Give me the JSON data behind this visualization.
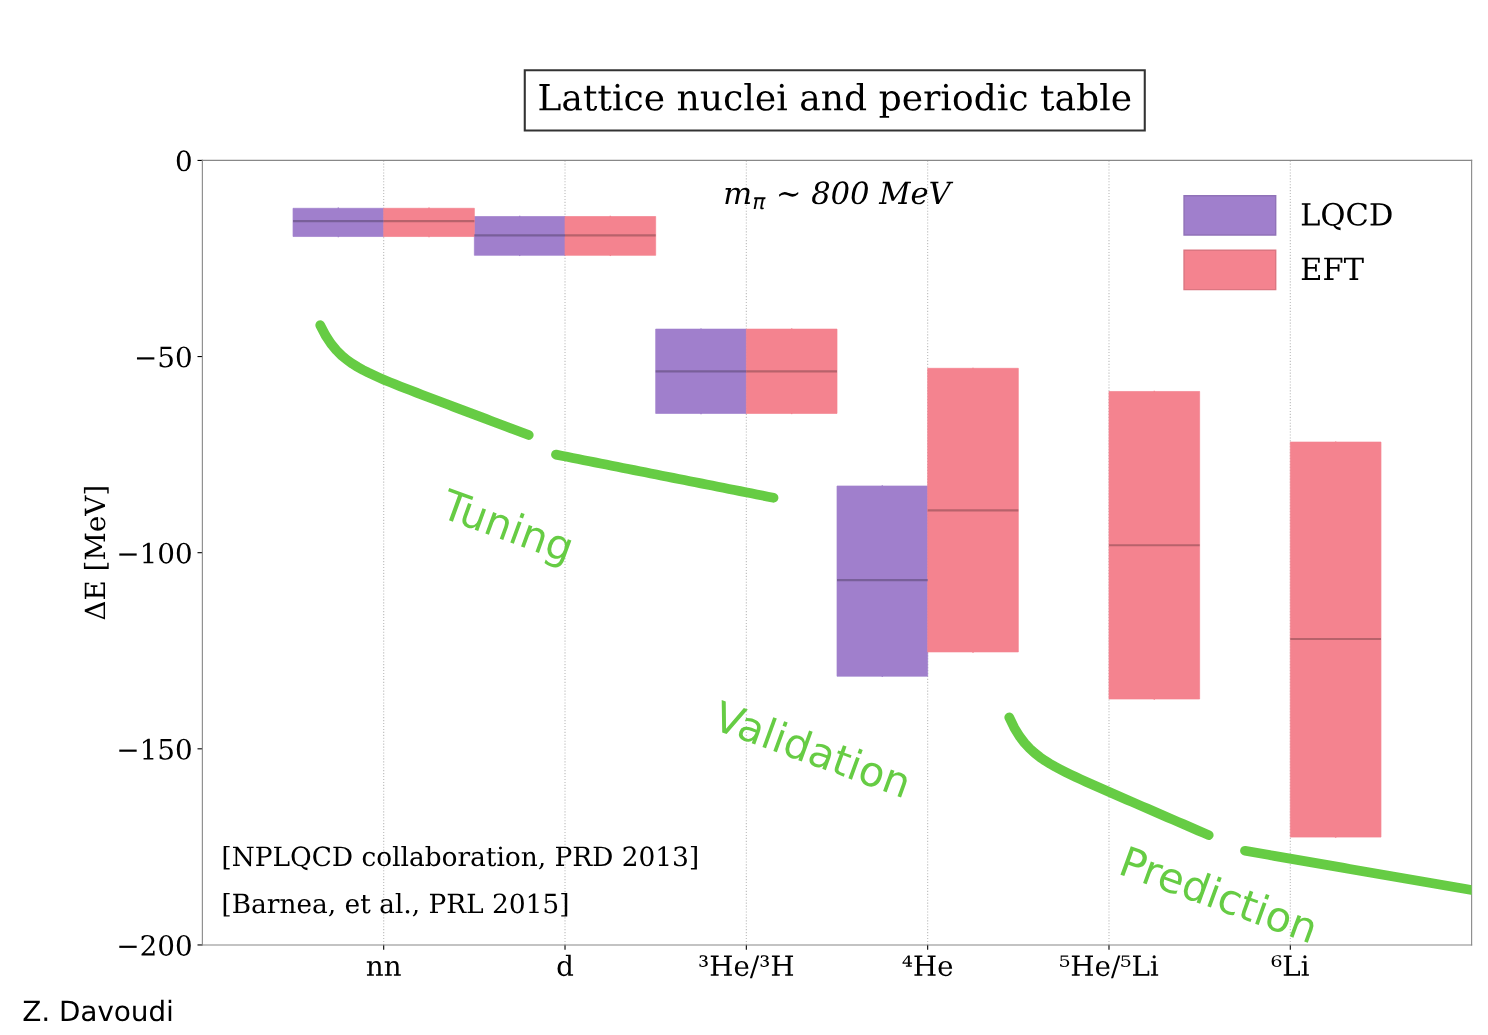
{
  "chart_data": {
    "type": "box",
    "title": "Lattice nuclei and periodic table",
    "ylabel": "ΔE [MeV]",
    "categories": [
      "nn",
      "d",
      "³He/³H",
      "⁴He",
      "⁵He/⁵Li",
      "⁶Li"
    ],
    "series": [
      {
        "name": "LQCD",
        "color": "#a07fcc",
        "boxes": [
          {
            "low": -19.4,
            "q1": -19.4,
            "median": -15.5,
            "q3": -12.2,
            "high": -12.2
          },
          {
            "low": -24.2,
            "q1": -24.2,
            "median": -19.1,
            "q3": -14.3,
            "high": -14.3
          },
          {
            "low": -64.5,
            "q1": -64.5,
            "median": -53.8,
            "q3": -43,
            "high": -43
          },
          {
            "low": -131.5,
            "q1": -131.5,
            "median": -107,
            "q3": -83,
            "high": -83
          },
          null,
          null
        ]
      },
      {
        "name": "EFT",
        "color": "#f4838f",
        "boxes": [
          {
            "low": -19.4,
            "q1": -19.4,
            "median": -15.5,
            "q3": -12.2,
            "high": -12.2
          },
          {
            "low": -24.2,
            "q1": -24.2,
            "median": -19.1,
            "q3": -14.3,
            "high": -14.3
          },
          {
            "low": -64.5,
            "q1": -64.5,
            "median": -53.8,
            "q3": -43,
            "high": -43
          },
          {
            "low": -125.3,
            "q1": -125.3,
            "median": -89.2,
            "q3": -53,
            "high": -53
          },
          {
            "low": -137.3,
            "q1": -137.3,
            "median": -98.1,
            "q3": -58.9,
            "high": -58.9
          },
          {
            "low": -172.5,
            "q1": -172.5,
            "median": -122,
            "q3": -71.8,
            "high": -71.8
          }
        ]
      }
    ],
    "ylim": [
      -200,
      0
    ],
    "yticks": [
      {
        "value": 0,
        "label": "0"
      },
      {
        "value": -50,
        "label": "−50"
      },
      {
        "value": -100,
        "label": "−100"
      },
      {
        "value": -150,
        "label": "−150"
      },
      {
        "value": -200,
        "label": "−200"
      }
    ],
    "grid": "x",
    "legend": "top right",
    "annotations": [
      "m$_{π}$ ∼ 800 MeV",
      "Tuning",
      "Validation",
      "Prediction",
      "[NPLQCD collaboration, PRD 2013]",
      "[Barnea, et al., PRL 2015]",
      "Z. Davoudi"
    ]
  }
}
